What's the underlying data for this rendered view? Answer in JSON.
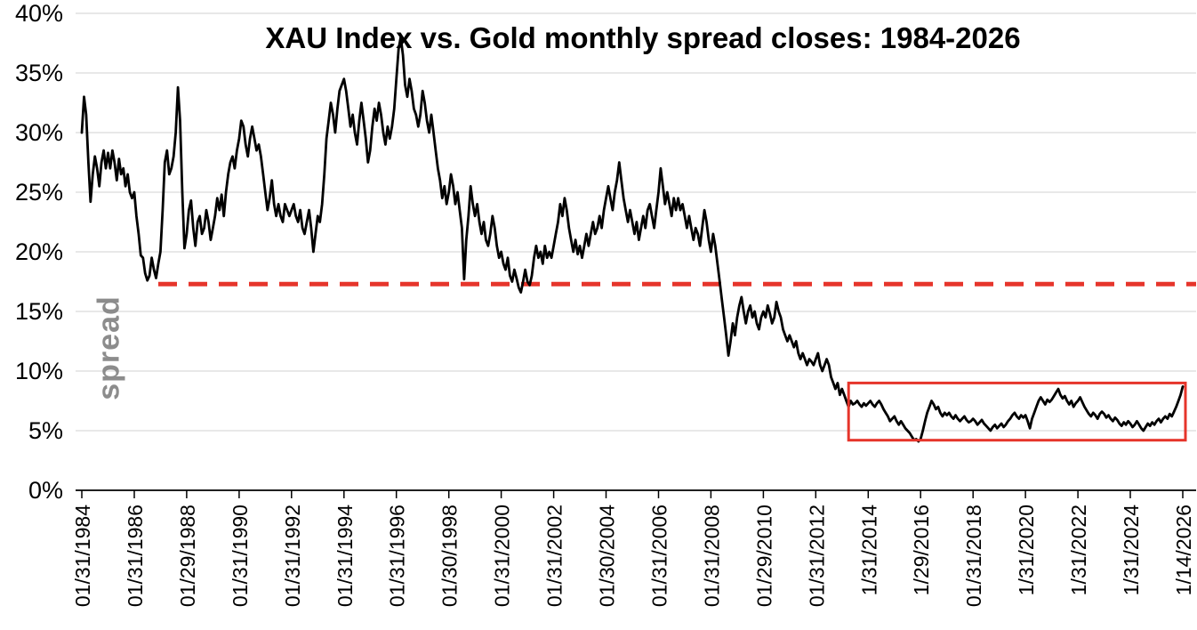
{
  "chart_data": {
    "type": "line",
    "title": "XAU Index vs. Gold monthly spread closes: 1984-2026",
    "ylabel": "spread",
    "grid": true,
    "legend": false,
    "x_axis": {
      "tick_labels": [
        "01/31/1984",
        "01/31/1986",
        "01/29/1988",
        "01/31/1990",
        "01/31/1992",
        "01/31/1994",
        "01/31/1996",
        "01/30/1998",
        "01/31/2000",
        "01/31/2002",
        "01/30/2004",
        "01/31/2006",
        "01/31/2008",
        "01/29/2010",
        "01/31/2012",
        "1/31/2014",
        "1/29/2016",
        "01/31/2018",
        "1/31/2020",
        "1/31/2022",
        "1/31/2024",
        "1/14/2026"
      ],
      "tick_indices": [
        0,
        24,
        48,
        72,
        96,
        120,
        144,
        168,
        192,
        216,
        240,
        264,
        288,
        312,
        336,
        360,
        384,
        408,
        432,
        456,
        480,
        504
      ]
    },
    "y_axis": {
      "min": 0,
      "max": 40,
      "ticks": [
        "0%",
        "5%",
        "10%",
        "15%",
        "20%",
        "25%",
        "30%",
        "35%",
        "40%"
      ],
      "tick_values": [
        0,
        5,
        10,
        15,
        20,
        25,
        30,
        35,
        40
      ]
    },
    "series": [
      {
        "name": "XAU Index vs. Gold monthly spread (%)",
        "start_date": "01/31/1984",
        "end_date": "1/14/2026",
        "frequency": "monthly",
        "values": [
          30.0,
          33.0,
          31.5,
          27.5,
          24.2,
          26.5,
          28.0,
          27.0,
          25.5,
          27.5,
          28.5,
          27.0,
          28.3,
          27.0,
          28.5,
          27.5,
          26.0,
          27.8,
          26.5,
          27.0,
          25.5,
          26.5,
          25.0,
          24.5,
          25.0,
          23.0,
          21.5,
          19.7,
          19.5,
          18.2,
          17.6,
          18.0,
          19.5,
          18.5,
          17.8,
          19.0,
          20.0,
          23.5,
          27.5,
          28.5,
          26.5,
          27.0,
          28.0,
          30.0,
          33.8,
          31.0,
          25.0,
          20.3,
          21.5,
          23.5,
          24.3,
          22.0,
          20.5,
          22.5,
          23.0,
          21.5,
          22.0,
          23.5,
          22.5,
          21.0,
          22.0,
          23.0,
          24.5,
          23.5,
          24.8,
          23.0,
          25.0,
          26.5,
          27.5,
          28.0,
          27.0,
          28.5,
          29.5,
          31.0,
          30.5,
          29.0,
          28.0,
          29.5,
          30.5,
          29.5,
          28.5,
          29.0,
          28.0,
          26.5,
          25.0,
          23.5,
          24.5,
          26.0,
          24.0,
          23.0,
          24.0,
          23.0,
          22.5,
          24.0,
          23.5,
          23.0,
          23.5,
          24.0,
          23.0,
          22.5,
          23.5,
          22.0,
          21.5,
          22.5,
          23.5,
          22.0,
          20.0,
          21.5,
          23.0,
          22.5,
          24.0,
          26.5,
          29.5,
          31.0,
          32.5,
          31.5,
          30.0,
          32.0,
          33.5,
          34.0,
          34.5,
          33.5,
          32.0,
          30.5,
          31.5,
          30.0,
          29.0,
          31.0,
          32.5,
          31.0,
          29.5,
          27.5,
          28.5,
          30.5,
          32.0,
          31.0,
          32.5,
          31.5,
          30.0,
          29.0,
          30.5,
          29.5,
          30.5,
          32.0,
          34.5,
          37.0,
          38.0,
          36.5,
          34.0,
          33.0,
          34.5,
          33.5,
          32.0,
          31.5,
          30.5,
          31.5,
          33.5,
          32.5,
          31.0,
          30.0,
          31.5,
          30.0,
          28.5,
          27.0,
          26.0,
          24.5,
          25.5,
          24.0,
          25.0,
          26.5,
          25.5,
          24.0,
          25.0,
          23.5,
          22.0,
          17.7,
          21.0,
          23.0,
          25.5,
          24.0,
          23.0,
          24.0,
          22.5,
          21.5,
          22.5,
          21.0,
          20.5,
          21.5,
          23.0,
          22.0,
          20.5,
          19.5,
          20.0,
          19.0,
          18.5,
          19.5,
          18.0,
          17.5,
          18.5,
          17.8,
          17.0,
          16.6,
          17.5,
          18.5,
          17.5,
          17.2,
          18.0,
          19.5,
          20.5,
          19.5,
          20.0,
          19.0,
          20.5,
          19.5,
          20.0,
          19.5,
          20.5,
          21.5,
          22.5,
          24.0,
          23.0,
          24.5,
          23.5,
          22.0,
          21.0,
          20.0,
          21.0,
          19.8,
          20.5,
          19.5,
          20.5,
          21.5,
          20.5,
          21.5,
          22.5,
          21.5,
          22.0,
          23.0,
          22.0,
          23.5,
          24.5,
          25.5,
          24.5,
          23.5,
          25.0,
          26.0,
          27.5,
          26.0,
          24.5,
          23.5,
          22.5,
          23.5,
          22.5,
          21.5,
          22.5,
          21.0,
          22.0,
          23.0,
          22.0,
          23.5,
          24.0,
          23.0,
          22.0,
          23.5,
          25.0,
          27.0,
          25.5,
          24.0,
          25.0,
          24.0,
          23.0,
          24.5,
          23.5,
          24.5,
          23.5,
          24.0,
          23.0,
          22.0,
          23.0,
          22.0,
          21.0,
          22.0,
          21.5,
          20.5,
          22.0,
          23.5,
          22.5,
          21.0,
          20.0,
          21.5,
          20.5,
          19.0,
          17.5,
          16.0,
          14.5,
          13.0,
          11.3,
          12.5,
          14.0,
          13.0,
          14.5,
          15.5,
          16.2,
          15.0,
          14.0,
          15.0,
          15.5,
          14.5,
          15.0,
          14.0,
          13.5,
          14.5,
          15.0,
          14.5,
          15.5,
          14.8,
          14.0,
          14.5,
          15.8,
          15.0,
          14.5,
          13.5,
          13.0,
          12.5,
          13.0,
          12.5,
          12.0,
          12.5,
          11.5,
          11.0,
          11.5,
          11.0,
          10.5,
          11.0,
          10.8,
          10.5,
          11.0,
          11.5,
          10.5,
          10.0,
          10.5,
          11.0,
          10.5,
          9.5,
          9.0,
          8.5,
          9.0,
          8.0,
          8.5,
          8.0,
          7.5,
          7.0,
          7.5,
          7.2,
          7.3,
          7.5,
          7.2,
          7.0,
          7.3,
          7.1,
          7.3,
          7.5,
          7.2,
          7.0,
          7.3,
          7.5,
          7.2,
          6.8,
          6.5,
          6.2,
          5.8,
          6.0,
          6.2,
          5.8,
          5.5,
          5.8,
          5.5,
          5.2,
          5.0,
          4.8,
          4.5,
          4.2,
          4.3,
          4.1,
          4.3,
          5.0,
          5.8,
          6.5,
          7.0,
          7.5,
          7.2,
          6.8,
          7.0,
          6.5,
          6.2,
          6.5,
          6.3,
          6.5,
          6.2,
          6.0,
          6.3,
          6.0,
          5.8,
          6.0,
          6.2,
          5.9,
          5.7,
          5.8,
          6.0,
          5.8,
          5.5,
          5.7,
          5.9,
          5.6,
          5.4,
          5.2,
          5.0,
          5.3,
          5.5,
          5.2,
          5.4,
          5.6,
          5.3,
          5.5,
          5.8,
          6.0,
          6.3,
          6.5,
          6.2,
          6.0,
          6.3,
          6.1,
          6.3,
          5.8,
          5.2,
          6.0,
          6.5,
          7.0,
          7.5,
          7.8,
          7.5,
          7.2,
          7.6,
          7.4,
          7.6,
          7.9,
          8.2,
          8.5,
          8.0,
          7.7,
          7.9,
          7.5,
          7.2,
          7.5,
          7.0,
          7.3,
          7.5,
          7.8,
          7.4,
          7.0,
          6.7,
          6.4,
          6.2,
          6.5,
          6.3,
          6.0,
          6.4,
          6.6,
          6.4,
          6.1,
          6.3,
          6.0,
          5.8,
          6.1,
          5.9,
          5.6,
          5.4,
          5.7,
          5.5,
          5.8,
          5.6,
          5.3,
          5.5,
          5.8,
          5.5,
          5.2,
          5.0,
          5.3,
          5.6,
          5.4,
          5.7,
          5.5,
          5.8,
          6.0,
          5.7,
          6.0,
          6.2,
          6.0,
          6.4,
          6.2,
          6.6,
          7.0,
          7.5,
          8.0,
          8.7
        ]
      }
    ],
    "annotations": {
      "dashed_reference_line": {
        "y": 17.3,
        "start_index": 35,
        "style": "dashed",
        "color": "#e6352b"
      },
      "highlight_box": {
        "start_index": 351,
        "end_index": 504,
        "y_min": 4.2,
        "y_max": 9.0,
        "color": "#e6352b"
      }
    },
    "colors": {
      "series": "#000000",
      "grid": "#d9d9d9",
      "axis": "#000000",
      "annotation": "#e6352b",
      "ylabel_text": "#8c8c8c"
    }
  }
}
